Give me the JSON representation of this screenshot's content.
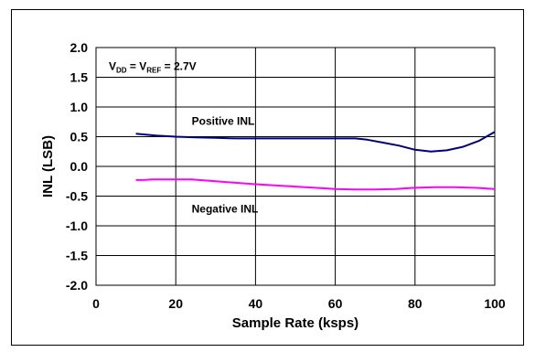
{
  "chart_data": {
    "type": "line",
    "xlabel": "Sample Rate (ksps)",
    "ylabel": "INL  (LSB)",
    "xlim": [
      0,
      100
    ],
    "ylim": [
      -2.0,
      2.0
    ],
    "x_ticks": [
      "0",
      "20",
      "40",
      "60",
      "80",
      "100"
    ],
    "y_ticks": [
      "2.0",
      "1.5",
      "1.0",
      "0.5",
      "0.0",
      "-0.5",
      "-1.0",
      "-1.5",
      "-2.0"
    ],
    "grid": true,
    "annotation": {
      "main": "V",
      "sub1": "DD",
      "mid": " = V",
      "sub2": "REF",
      "tail": " = 2.7V"
    },
    "series": [
      {
        "name": "Positive INL",
        "color": "#000080",
        "x": [
          10,
          15,
          20,
          25,
          30,
          35,
          40,
          45,
          50,
          55,
          60,
          65,
          68,
          72,
          76,
          80,
          84,
          88,
          92,
          96,
          100
        ],
        "y": [
          0.55,
          0.52,
          0.5,
          0.49,
          0.48,
          0.47,
          0.47,
          0.47,
          0.47,
          0.47,
          0.47,
          0.47,
          0.45,
          0.4,
          0.35,
          0.28,
          0.25,
          0.27,
          0.33,
          0.43,
          0.58
        ]
      },
      {
        "name": "Negative INL",
        "color": "#ff00ff",
        "x": [
          10,
          12,
          14,
          16,
          20,
          24,
          30,
          40,
          50,
          55,
          60,
          65,
          70,
          75,
          80,
          85,
          90,
          95,
          100
        ],
        "y": [
          -0.23,
          -0.23,
          -0.22,
          -0.22,
          -0.22,
          -0.22,
          -0.25,
          -0.3,
          -0.34,
          -0.36,
          -0.38,
          -0.39,
          -0.39,
          -0.38,
          -0.36,
          -0.35,
          -0.35,
          -0.36,
          -0.38
        ]
      }
    ]
  }
}
